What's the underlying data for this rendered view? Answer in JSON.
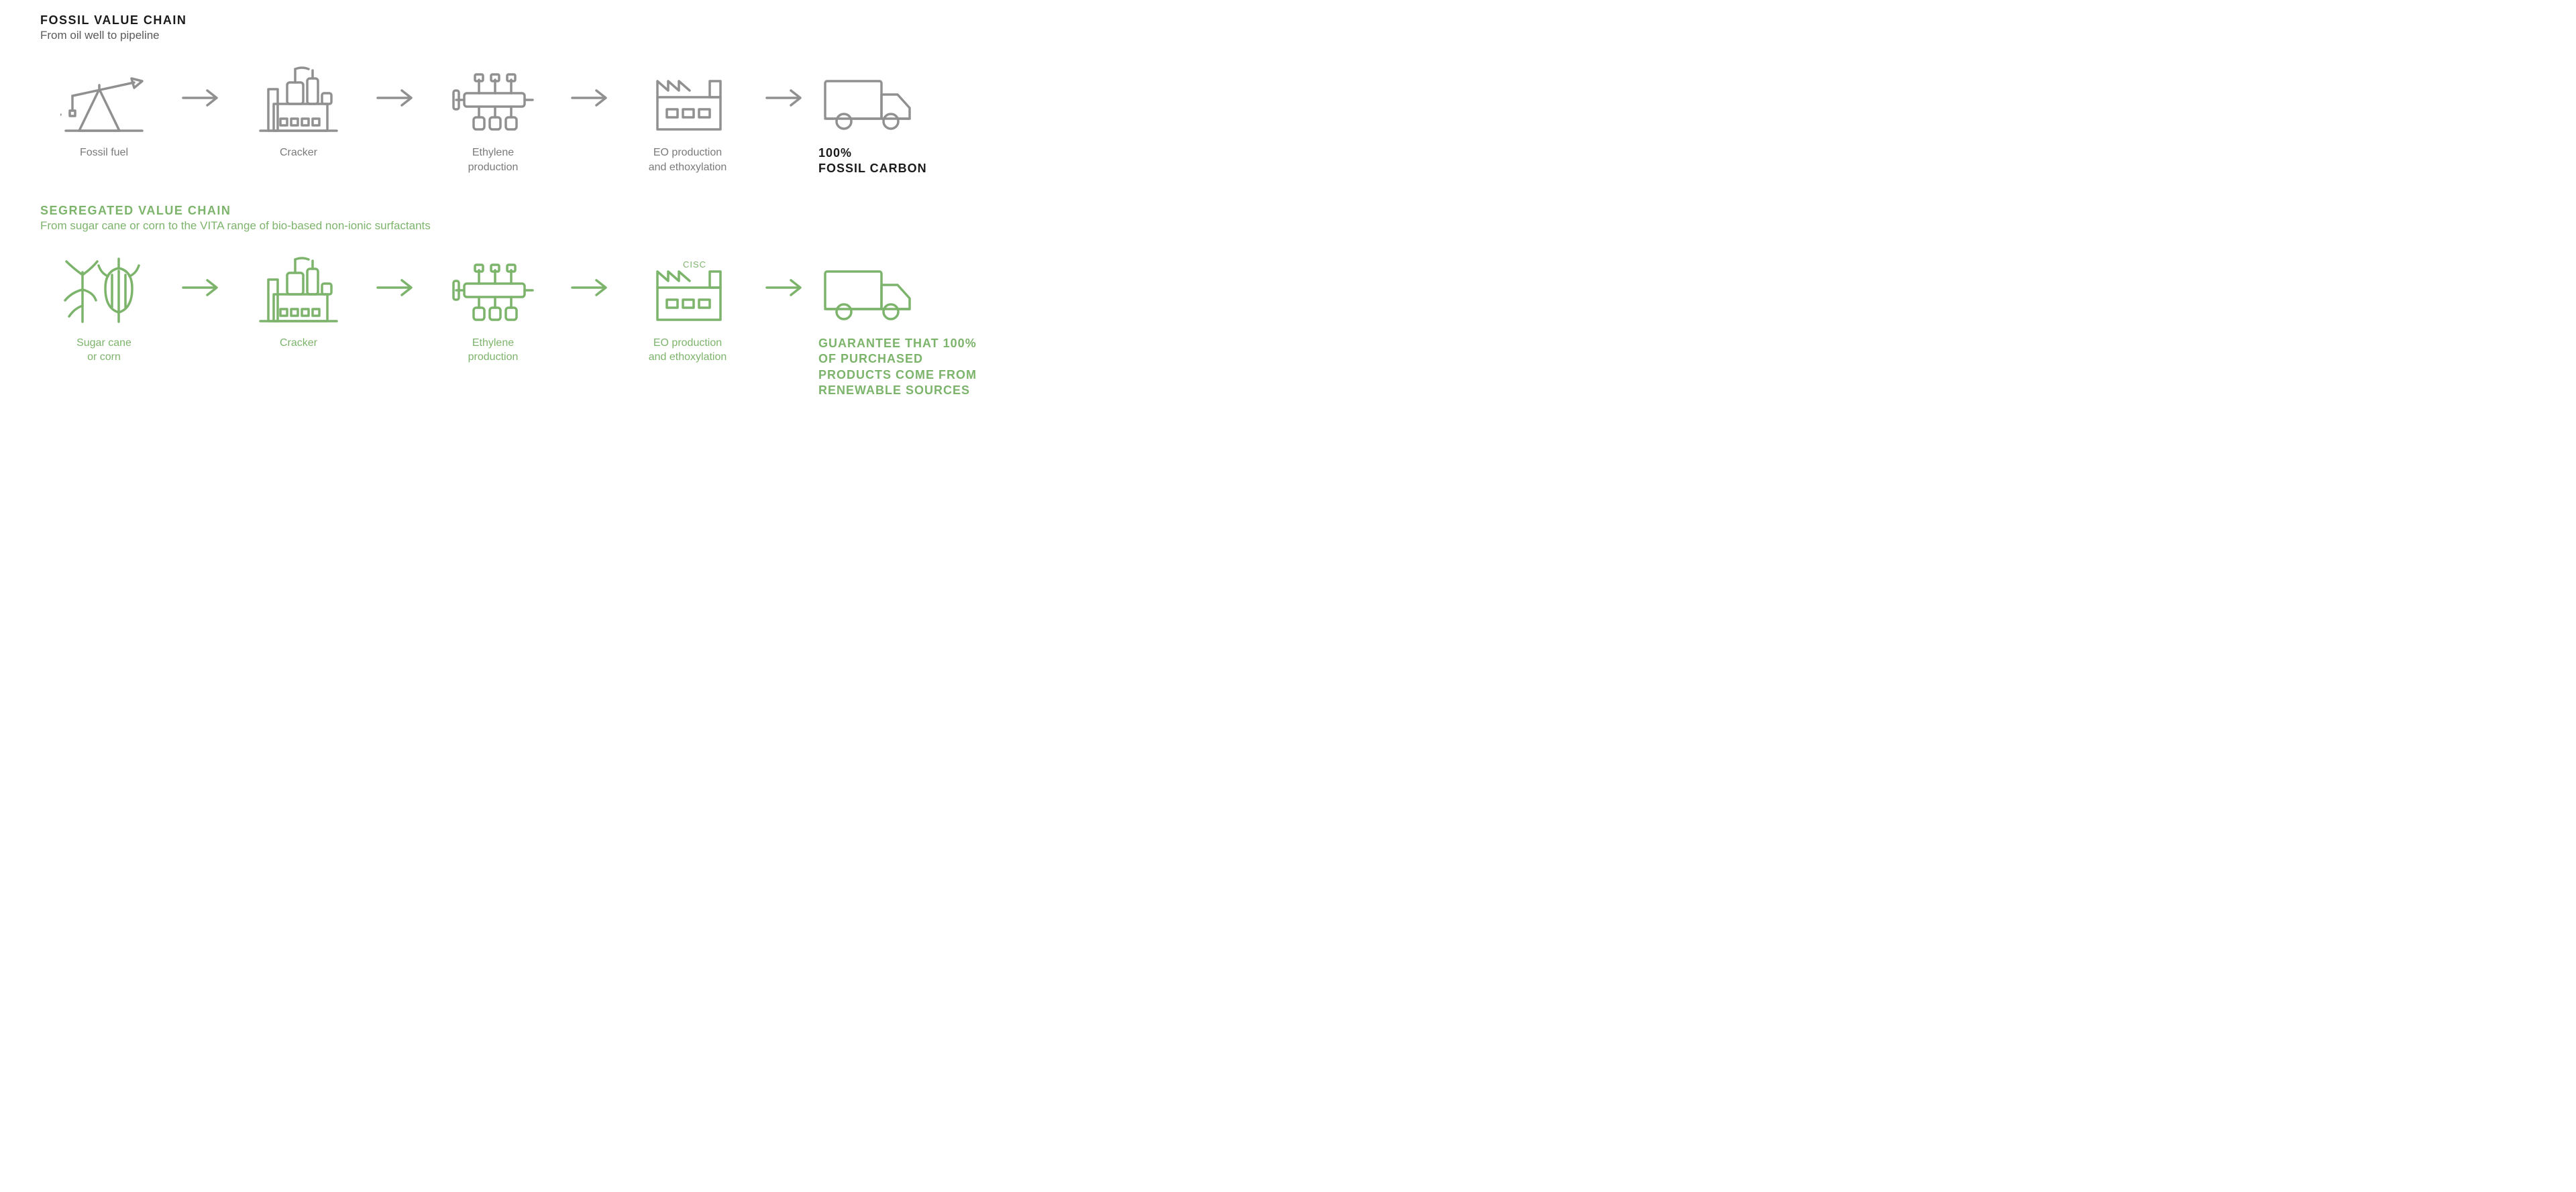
{
  "type": "flowchart",
  "background_color": "#ffffff",
  "colors": {
    "fossil_stroke": "#909090",
    "fossil_text": "#7a7a7a",
    "fossil_title": "#1a1a1a",
    "fossil_final": "#1a1a1a",
    "bio_stroke": "#7db46c",
    "bio_text": "#7db46c",
    "bio_title": "#7db46c",
    "bio_final": "#7db46c"
  },
  "stroke_width": 3.5,
  "label_fontsize": 16,
  "title_fontsize": 18,
  "final_fontsize": 18,
  "chains": {
    "fossil": {
      "title": "FOSSIL VALUE CHAIN",
      "subtitle": "From oil well to pipeline",
      "steps": [
        {
          "icon": "oil-pump",
          "label": "Fossil fuel"
        },
        {
          "icon": "cracker",
          "label": "Cracker"
        },
        {
          "icon": "ethylene",
          "label": "Ethylene\nproduction"
        },
        {
          "icon": "factory",
          "label": "EO production\nand ethoxylation"
        },
        {
          "icon": "truck",
          "label": "100%\nFOSSIL CARBON",
          "final": true
        }
      ]
    },
    "bio": {
      "title": "SEGREGATED VALUE CHAIN",
      "subtitle": "From sugar cane or corn to the VITA range of bio-based non-ionic surfactants",
      "steps": [
        {
          "icon": "crops",
          "label": "Sugar cane\nor corn"
        },
        {
          "icon": "cracker",
          "label": "Cracker"
        },
        {
          "icon": "ethylene",
          "label": "Ethylene\nproduction"
        },
        {
          "icon": "factory",
          "label": "EO production\nand ethoxylation",
          "badge": "CISC"
        },
        {
          "icon": "truck",
          "label": "GUARANTEE THAT 100% OF PURCHASED PRODUCTS COME FROM RENEWABLE SOURCES",
          "final": true
        }
      ]
    }
  }
}
